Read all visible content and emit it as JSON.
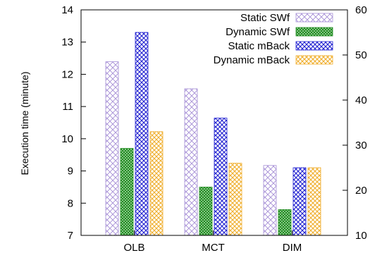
{
  "chart_data": {
    "type": "bar",
    "title": "",
    "xlabel": "",
    "ylabel": "Execution time (minute)",
    "categories": [
      "OLB",
      "MCT",
      "DIM"
    ],
    "series": [
      {
        "name": "Static SWf",
        "axis": "y2",
        "values": [
          48.5,
          42.5,
          25.5
        ],
        "color": "#a58ed6",
        "pattern": "crosshatch-light"
      },
      {
        "name": "Dynamic SWf",
        "axis": "y",
        "values": [
          9.7,
          8.5,
          7.8
        ],
        "color": "#1e8a1e",
        "pattern": "crosshatch-dense"
      },
      {
        "name": "Static mBack",
        "axis": "y2",
        "values": [
          55.0,
          36.0,
          25.0
        ],
        "color": "#1f1fd0",
        "pattern": "crosshatch-dense"
      },
      {
        "name": "Dynamic mBack",
        "axis": "y2",
        "values": [
          33.0,
          26.0,
          25.0
        ],
        "color": "#f0ae2c",
        "pattern": "crosshatch-light"
      }
    ],
    "ylim": [
      7,
      14
    ],
    "yticks": [
      7,
      8,
      9,
      10,
      11,
      12,
      13,
      14
    ],
    "y2lim": [
      10,
      60
    ],
    "y2ticks": [
      10,
      20,
      30,
      40,
      50,
      60
    ],
    "grid": false,
    "legend": "top-right"
  }
}
